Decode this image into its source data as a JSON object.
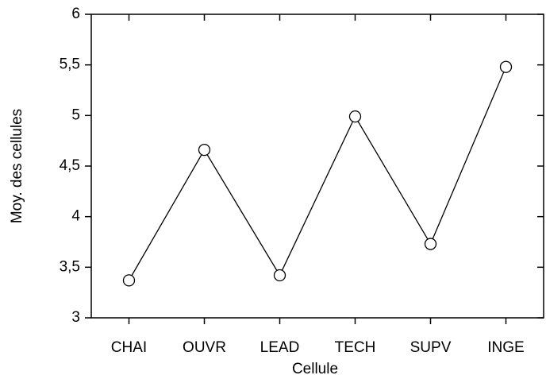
{
  "chart_data": {
    "type": "line",
    "x_label": "Cellule",
    "y_label": "Moy. des cellules",
    "categories": [
      "CHAI",
      "OUVR",
      "LEAD",
      "TECH",
      "SUPV",
      "INGE"
    ],
    "series": [
      {
        "name": "Moy. des cellules",
        "color": "#000000",
        "values": [
          3.37,
          4.66,
          3.42,
          4.99,
          3.73,
          5.48
        ]
      }
    ],
    "ylim": [
      3,
      6
    ],
    "yticks": [
      3,
      {
        "value": 3.5,
        "label": "3,5"
      },
      4,
      {
        "value": 4.5,
        "label": "4,5"
      },
      5,
      {
        "value": 5.5,
        "label": "5,5"
      },
      6
    ],
    "grid": false,
    "markers": "open-circle"
  }
}
